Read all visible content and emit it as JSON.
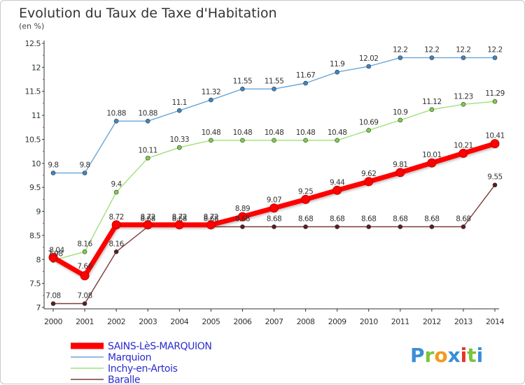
{
  "chart_data": {
    "type": "line",
    "title": "Evolution du Taux de Taxe d'Habitation",
    "subtitle": "(en %)",
    "xlabel": "",
    "ylabel": "",
    "x": [
      "2000",
      "2001",
      "2002",
      "2003",
      "2004",
      "2005",
      "2006",
      "2007",
      "2008",
      "2009",
      "2010",
      "2011",
      "2012",
      "2013",
      "2014"
    ],
    "ylim": [
      7,
      12.5
    ],
    "yticks": [
      "7",
      "7.5",
      "8",
      "8.5",
      "9",
      "9.5",
      "10",
      "10.5",
      "11",
      "11.5",
      "12",
      "12.5"
    ],
    "grid": false,
    "legend_position": "bottom-left",
    "series": [
      {
        "name": "SAINS-LèS-MARQUION",
        "color": "#ff0000",
        "point_color": "#ff0000",
        "values": [
          8.04,
          7.66,
          8.72,
          8.72,
          8.72,
          8.72,
          8.89,
          9.07,
          9.25,
          9.44,
          9.62,
          9.81,
          10.01,
          10.21,
          10.41
        ],
        "labels": [
          "8.04",
          "7.66",
          "8.72",
          "8.72",
          "8.72",
          "8.72",
          "8.89",
          "9.07",
          "9.25",
          "9.44",
          "9.62",
          "9.81",
          "10.01",
          "10.21",
          "10.41"
        ]
      },
      {
        "name": "Marquion",
        "color": "#6aa6d8",
        "point_color": "#3d87c4",
        "values": [
          9.8,
          9.8,
          10.88,
          10.88,
          11.1,
          11.32,
          11.55,
          11.55,
          11.67,
          11.9,
          12.02,
          12.2,
          12.2,
          12.2,
          12.2
        ],
        "labels": [
          "9.8",
          "9.8",
          "10.88",
          "10.88",
          "11.1",
          "11.32",
          "11.55",
          "11.55",
          "11.67",
          "11.9",
          "12.02",
          "12.2",
          "12.2",
          "12.2",
          "12.2"
        ]
      },
      {
        "name": "Inchy-en-Artois",
        "color": "#9ee07a",
        "point_color": "#7cd046",
        "values": [
          7.98,
          8.16,
          9.4,
          10.11,
          10.33,
          10.48,
          10.48,
          10.48,
          10.48,
          10.48,
          10.69,
          10.9,
          11.12,
          11.23,
          11.29
        ],
        "labels": [
          "7.98",
          "8.16",
          "9.4",
          "10.11",
          "10.33",
          "10.48",
          "10.48",
          "10.48",
          "10.48",
          "10.48",
          "10.69",
          "10.9",
          "11.12",
          "11.23",
          "11.29"
        ]
      },
      {
        "name": "Baralle",
        "color": "#7a3a3a",
        "point_color": "#5a1e1e",
        "values": [
          7.08,
          7.08,
          8.16,
          8.68,
          8.68,
          8.68,
          8.68,
          8.68,
          8.68,
          8.68,
          8.68,
          8.68,
          8.68,
          8.68,
          9.55
        ],
        "labels": [
          "7.08",
          "7.08",
          "8.16",
          "8.68",
          "8.68",
          "8.68",
          "8.68",
          "8.68",
          "8.68",
          "8.68",
          "8.68",
          "8.68",
          "8.68",
          "8.68",
          "9.55"
        ]
      }
    ]
  },
  "logo": {
    "text": "Proxiti",
    "colors": [
      "#3a8fd6",
      "#7cc43a",
      "#f39a1e",
      "#3a8fd6",
      "#e8332a",
      "#7cc43a",
      "#3a8fd6"
    ]
  }
}
